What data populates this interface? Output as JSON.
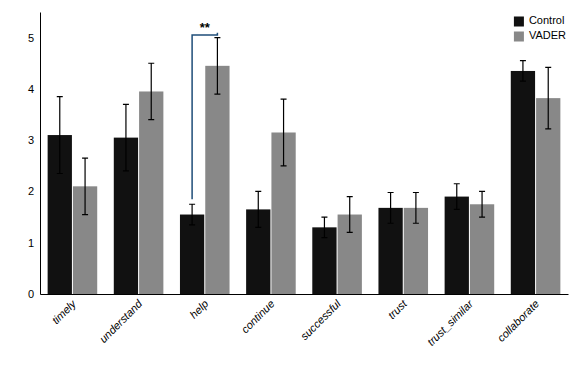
{
  "chart_data": {
    "type": "bar",
    "categories": [
      "timely",
      "understand",
      "help",
      "continue",
      "successful",
      "trust",
      "trust_similar",
      "collaborate"
    ],
    "series": [
      {
        "name": "Control",
        "color": "#111111",
        "values": [
          3.1,
          3.05,
          1.55,
          1.65,
          1.3,
          1.68,
          1.9,
          4.35
        ],
        "errors": [
          0.75,
          0.65,
          0.2,
          0.35,
          0.2,
          0.3,
          0.25,
          0.2
        ]
      },
      {
        "name": "VADER",
        "color": "#888888",
        "values": [
          2.1,
          3.95,
          4.45,
          3.15,
          1.55,
          1.68,
          1.75,
          3.82
        ],
        "errors": [
          0.55,
          0.55,
          0.55,
          0.65,
          0.35,
          0.3,
          0.25,
          0.6
        ]
      }
    ],
    "ylim": [
      0,
      5.5
    ],
    "yticks": [
      0,
      1,
      2,
      3,
      4,
      5
    ],
    "grid": false,
    "legend": "upper right",
    "annotations": [
      {
        "text": "**",
        "category": "help",
        "y": 5.05,
        "color": "#1f4e79"
      }
    ]
  }
}
